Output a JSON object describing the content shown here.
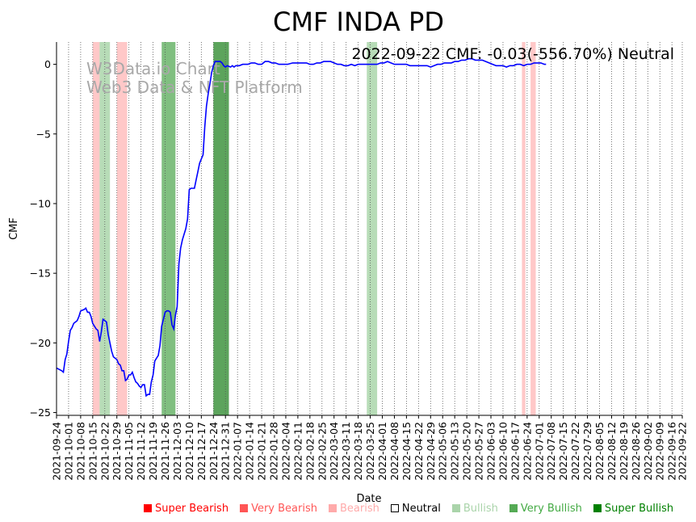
{
  "chart_data": {
    "type": "line",
    "title": "CMF INDA PD",
    "annotation": "2022-09-22 CMF: -0.03(-556.70%) Neutral",
    "watermark": [
      "W3Data.io Chart",
      "Web3 Data & NFT Platform"
    ],
    "xlabel": "Date",
    "ylabel": "CMF",
    "x_start": "2021-09-24",
    "x_end": "2022-09-22",
    "ylim": [
      -25.2,
      1.6
    ],
    "yticks": [
      0,
      -5,
      -10,
      -15,
      -20,
      -25
    ],
    "ytick_labels": [
      "0",
      "−5",
      "−10",
      "−15",
      "−20",
      "−25"
    ],
    "xtick_labels": [
      "2021-09-24",
      "2021-10-01",
      "2021-10-08",
      "2021-10-15",
      "2021-10-22",
      "2021-10-29",
      "2021-11-05",
      "2021-11-12",
      "2021-11-19",
      "2021-11-26",
      "2021-12-03",
      "2021-12-10",
      "2021-12-17",
      "2021-12-24",
      "2021-12-31",
      "2022-01-07",
      "2022-01-14",
      "2022-01-21",
      "2022-01-28",
      "2022-02-04",
      "2022-02-11",
      "2022-02-18",
      "2022-02-25",
      "2022-03-04",
      "2022-03-11",
      "2022-03-18",
      "2022-03-25",
      "2022-04-01",
      "2022-04-08",
      "2022-04-15",
      "2022-04-22",
      "2022-04-29",
      "2022-05-06",
      "2022-05-13",
      "2022-05-20",
      "2022-05-27",
      "2022-06-03",
      "2022-06-10",
      "2022-06-17",
      "2022-06-24",
      "2022-07-01",
      "2022-07-08",
      "2022-07-15",
      "2022-07-22",
      "2022-07-29",
      "2022-08-05",
      "2022-08-12",
      "2022-08-19",
      "2022-08-26",
      "2022-09-02",
      "2022-09-09",
      "2022-09-16",
      "2022-09-22"
    ],
    "series": [
      {
        "name": "CMF",
        "color": "#0000ff",
        "points": [
          [
            0,
            -21.8
          ],
          [
            3,
            -22.0
          ],
          [
            4,
            -22.1
          ],
          [
            5,
            -21.2
          ],
          [
            6,
            -20.8
          ],
          [
            7,
            -19.9
          ],
          [
            8,
            -19.1
          ],
          [
            9,
            -18.9
          ],
          [
            10,
            -18.6
          ],
          [
            12,
            -18.4
          ],
          [
            13,
            -18.1
          ],
          [
            14,
            -17.7
          ],
          [
            16,
            -17.6
          ],
          [
            17,
            -17.5
          ],
          [
            18,
            -17.8
          ],
          [
            19,
            -17.8
          ],
          [
            20,
            -18.1
          ],
          [
            21,
            -18.6
          ],
          [
            23,
            -19.0
          ],
          [
            24,
            -19.1
          ],
          [
            25,
            -19.9
          ],
          [
            26,
            -19.2
          ],
          [
            27,
            -18.3
          ],
          [
            28,
            -18.4
          ],
          [
            29,
            -18.5
          ],
          [
            30,
            -19.4
          ],
          [
            31,
            -20.0
          ],
          [
            32,
            -20.6
          ],
          [
            33,
            -21.0
          ],
          [
            34,
            -21.1
          ],
          [
            35,
            -21.2
          ],
          [
            36,
            -21.5
          ],
          [
            37,
            -21.6
          ],
          [
            38,
            -22.0
          ],
          [
            39,
            -22.0
          ],
          [
            40,
            -22.7
          ],
          [
            41,
            -22.6
          ],
          [
            42,
            -22.3
          ],
          [
            43,
            -22.3
          ],
          [
            44,
            -22.1
          ],
          [
            45,
            -22.5
          ],
          [
            46,
            -22.8
          ],
          [
            47,
            -22.9
          ],
          [
            48,
            -23.1
          ],
          [
            49,
            -23.2
          ],
          [
            50,
            -23.0
          ],
          [
            51,
            -23.0
          ],
          [
            52,
            -23.8
          ],
          [
            53,
            -23.7
          ],
          [
            54,
            -23.7
          ],
          [
            55,
            -22.8
          ],
          [
            56,
            -22.3
          ],
          [
            57,
            -21.3
          ],
          [
            58,
            -21.1
          ],
          [
            59,
            -20.9
          ],
          [
            60,
            -20.2
          ],
          [
            61,
            -18.8
          ],
          [
            62,
            -18.3
          ],
          [
            63,
            -17.8
          ],
          [
            64,
            -17.7
          ],
          [
            65,
            -17.7
          ],
          [
            66,
            -17.8
          ],
          [
            67,
            -18.7
          ],
          [
            68,
            -19.0
          ],
          [
            69,
            -18.0
          ],
          [
            70,
            -17.4
          ],
          [
            71,
            -14.3
          ],
          [
            72,
            -13.2
          ],
          [
            73,
            -12.6
          ],
          [
            74,
            -12.2
          ],
          [
            75,
            -11.8
          ],
          [
            76,
            -11.1
          ],
          [
            77,
            -9.0
          ],
          [
            78,
            -8.9
          ],
          [
            79,
            -8.9
          ],
          [
            80,
            -8.9
          ],
          [
            81,
            -8.3
          ],
          [
            82,
            -7.7
          ],
          [
            83,
            -7.1
          ],
          [
            84,
            -6.8
          ],
          [
            85,
            -6.5
          ],
          [
            86,
            -4.5
          ],
          [
            87,
            -3.0
          ],
          [
            88,
            -2.1
          ],
          [
            89,
            -1.4
          ],
          [
            90,
            -0.6
          ],
          [
            91,
            -0.1
          ],
          [
            92,
            0.2
          ],
          [
            93,
            0.2
          ],
          [
            94,
            0.2
          ],
          [
            95,
            0.2
          ],
          [
            96,
            0.1
          ],
          [
            97,
            -0.1
          ],
          [
            98,
            -0.2
          ],
          [
            99,
            -0.1
          ],
          [
            101,
            -0.2
          ],
          [
            102,
            -0.1
          ],
          [
            103,
            -0.2
          ],
          [
            104,
            -0.1
          ],
          [
            106,
            -0.1
          ],
          [
            108,
            0.0
          ],
          [
            111,
            0.0
          ],
          [
            113,
            0.1
          ],
          [
            115,
            0.1
          ],
          [
            117,
            0.0
          ],
          [
            119,
            0.0
          ],
          [
            121,
            0.2
          ],
          [
            123,
            0.2
          ],
          [
            125,
            0.1
          ],
          [
            127,
            0.1
          ],
          [
            129,
            0.0
          ],
          [
            132,
            0.0
          ],
          [
            134,
            0.0
          ],
          [
            137,
            0.1
          ],
          [
            139,
            0.1
          ],
          [
            142,
            0.1
          ],
          [
            145,
            0.1
          ],
          [
            147,
            0.0
          ],
          [
            149,
            0.0
          ],
          [
            151,
            0.1
          ],
          [
            153,
            0.1
          ],
          [
            155,
            0.2
          ],
          [
            157,
            0.2
          ],
          [
            159,
            0.2
          ],
          [
            161,
            0.1
          ],
          [
            163,
            0.0
          ],
          [
            165,
            0.0
          ],
          [
            167,
            -0.1
          ],
          [
            169,
            -0.1
          ],
          [
            171,
            0.0
          ],
          [
            173,
            -0.1
          ],
          [
            175,
            0.0
          ],
          [
            178,
            0.0
          ],
          [
            181,
            0.0
          ],
          [
            183,
            0.0
          ],
          [
            186,
            0.0
          ],
          [
            188,
            0.1
          ],
          [
            190,
            0.1
          ],
          [
            192,
            0.2
          ],
          [
            194,
            0.1
          ],
          [
            196,
            0.0
          ],
          [
            198,
            0.0
          ],
          [
            200,
            0.0
          ],
          [
            203,
            0.0
          ],
          [
            205,
            -0.1
          ],
          [
            207,
            -0.1
          ],
          [
            209,
            -0.1
          ],
          [
            211,
            -0.1
          ],
          [
            213,
            -0.1
          ],
          [
            215,
            -0.1
          ],
          [
            217,
            -0.2
          ],
          [
            219,
            -0.1
          ],
          [
            221,
            0.0
          ],
          [
            223,
            0.0
          ],
          [
            225,
            0.1
          ],
          [
            227,
            0.1
          ],
          [
            229,
            0.1
          ],
          [
            231,
            0.2
          ],
          [
            233,
            0.2
          ],
          [
            235,
            0.3
          ],
          [
            237,
            0.3
          ],
          [
            239,
            0.4
          ],
          [
            241,
            0.4
          ],
          [
            243,
            0.3
          ],
          [
            245,
            0.3
          ],
          [
            247,
            0.3
          ],
          [
            249,
            0.2
          ],
          [
            251,
            0.1
          ],
          [
            253,
            0.0
          ],
          [
            255,
            -0.1
          ],
          [
            257,
            -0.1
          ],
          [
            259,
            -0.1
          ],
          [
            261,
            -0.2
          ],
          [
            263,
            -0.1
          ],
          [
            265,
            -0.1
          ],
          [
            267,
            0.0
          ],
          [
            269,
            0.0
          ],
          [
            271,
            -0.1
          ],
          [
            273,
            0.0
          ],
          [
            275,
            0.0
          ],
          [
            277,
            0.1
          ],
          [
            279,
            0.1
          ],
          [
            281,
            0.1
          ],
          [
            283,
            0.0
          ],
          [
            284,
            0.0
          ]
        ]
      }
    ],
    "bands": [
      {
        "start": 21,
        "end": 25,
        "level": "Bearish"
      },
      {
        "start": 25,
        "end": 31,
        "level": "Bullish"
      },
      {
        "start": 35,
        "end": 41,
        "level": "Bearish"
      },
      {
        "start": 61,
        "end": 69,
        "level": "Very Bullish"
      },
      {
        "start": 91,
        "end": 100,
        "level": "Super Bullish"
      },
      {
        "start": 180,
        "end": 186,
        "level": "Bullish"
      },
      {
        "start": 270,
        "end": 272,
        "level": "Bearish"
      },
      {
        "start": 275,
        "end": 278,
        "level": "Bearish"
      }
    ],
    "legend": [
      {
        "label": "Super Bearish",
        "color": "#ff0000",
        "text_color": "#ff0000"
      },
      {
        "label": "Very Bearish",
        "color": "#ff5555",
        "text_color": "#ff5555"
      },
      {
        "label": "Bearish",
        "color": "#ffaaaa",
        "text_color": "#ffaaaa"
      },
      {
        "label": "Neutral",
        "color": "#ffffff",
        "text_color": "#000000"
      },
      {
        "label": "Bullish",
        "color": "#aad4aa",
        "text_color": "#aad4aa"
      },
      {
        "label": "Very Bullish",
        "color": "#55aa55",
        "text_color": "#44aa44"
      },
      {
        "label": "Super Bullish",
        "color": "#008000",
        "text_color": "#008000"
      }
    ],
    "level_colors": {
      "Bearish": "#ffb6b6",
      "Bullish": "#9fd09f",
      "Very Bullish": "#55aa55",
      "Super Bullish": "#2e8b2e"
    },
    "grid": "vertical-dotted"
  }
}
